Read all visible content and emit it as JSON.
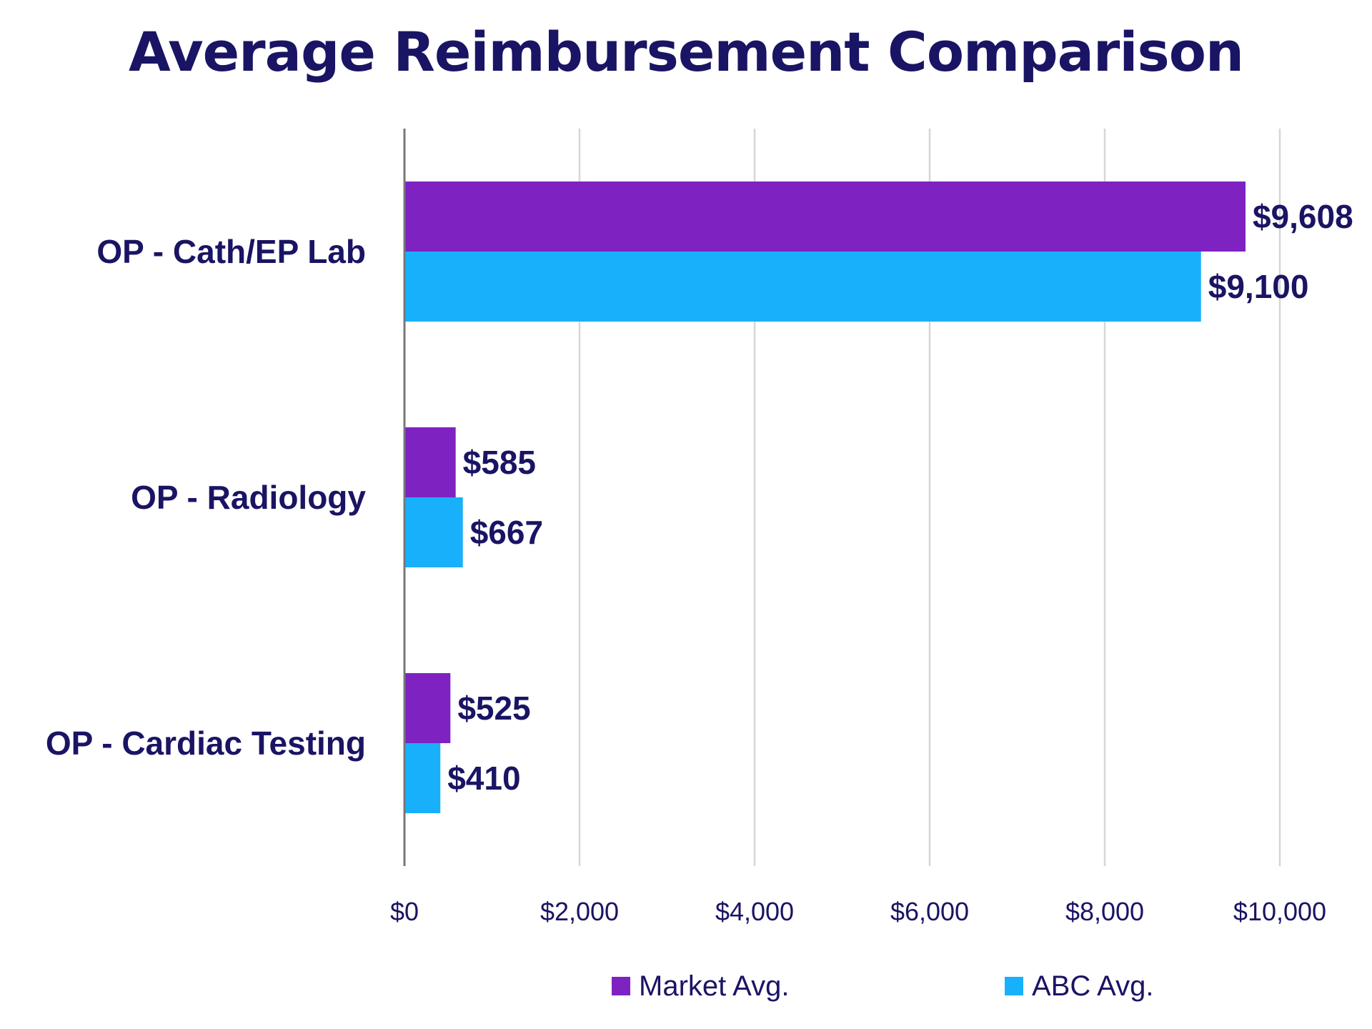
{
  "chart_data": {
    "type": "bar",
    "orientation": "horizontal",
    "title": "Average Reimbursement Comparison",
    "categories": [
      "OP - Cath/EP Lab",
      "OP - Radiology",
      "OP - Cardiac Testing"
    ],
    "series": [
      {
        "name": "Market Avg.",
        "color": "#7e22c2",
        "values": [
          9608,
          585,
          525
        ],
        "labels": [
          "$9,608",
          "$585",
          "$525"
        ]
      },
      {
        "name": "ABC Avg.",
        "color": "#18b0fb",
        "values": [
          9100,
          667,
          410
        ],
        "labels": [
          "$9,100",
          "$667",
          "$410"
        ]
      }
    ],
    "xlim": [
      0,
      10000
    ],
    "xticks": [
      0,
      2000,
      4000,
      6000,
      8000,
      10000
    ],
    "xtick_labels": [
      "$0",
      "$2,000",
      "$4,000",
      "$6,000",
      "$8,000",
      "$10,000"
    ],
    "grid": true,
    "legend_position": "bottom"
  }
}
